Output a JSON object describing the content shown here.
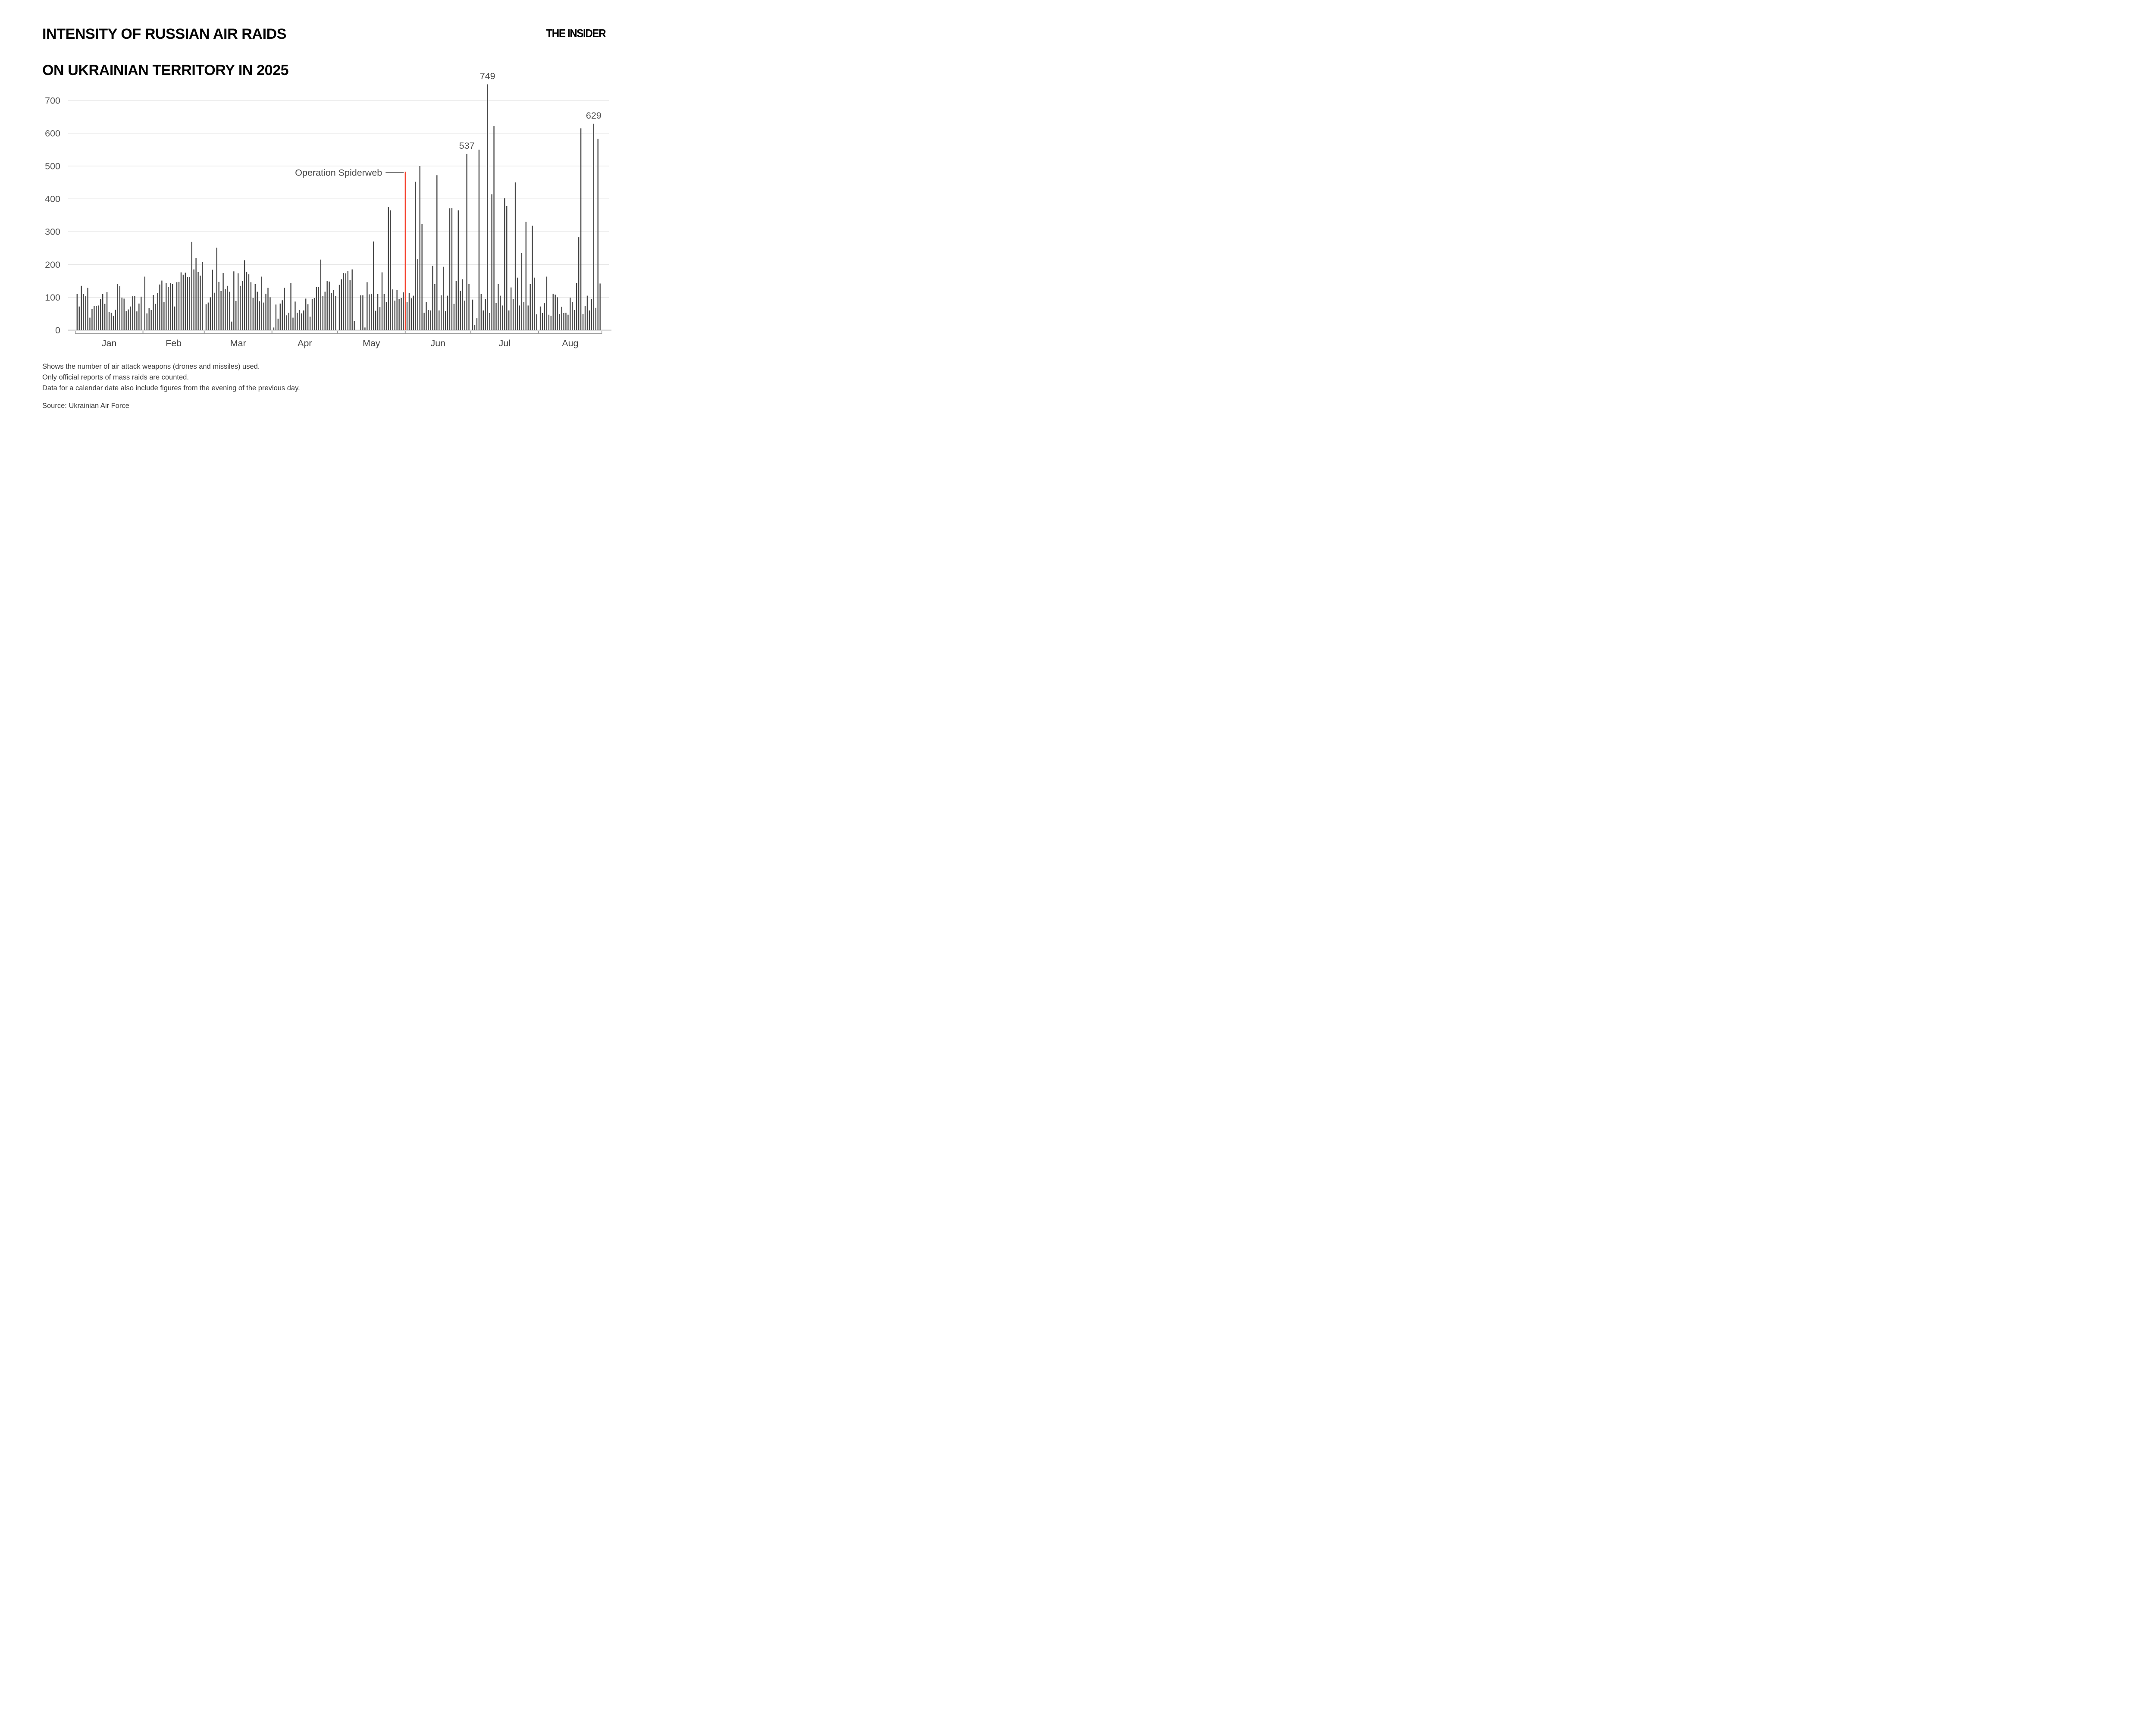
{
  "header": {
    "title_line1": "INTENSITY OF RUSSIAN AIR RAIDS",
    "title_line2": "ON UKRAINIAN TERRITORY IN 2025",
    "logo": "THE INSIDER"
  },
  "footnotes": {
    "line1": "Shows the number of air attack weapons (drones and missiles) used.",
    "line2": "Only official reports of mass raids are counted.",
    "line3": "Data for a calendar date also include figures from the evening of the previous day.",
    "source": "Source: Ukrainian Air Force"
  },
  "chart_data": {
    "type": "bar",
    "title": "Intensity of Russian air raids on Ukrainian territory in 2025, daily number of air attack weapons",
    "xlabel": "",
    "ylabel": "",
    "yticks": [
      0,
      100,
      200,
      300,
      400,
      500,
      600,
      700
    ],
    "ylim": [
      0,
      780
    ],
    "grid": true,
    "legend": "none",
    "bar_color": "#474747",
    "grid_color": "#e2e2e2",
    "axis_color": "#8c8c8c",
    "bracket_color": "#9a9a9a",
    "red_line_color": "#f5402c",
    "label_color": "#4d4d4d",
    "annotation": {
      "text": "Operation Spiderweb",
      "position": "vertical red line between May 31 and Jun 1"
    },
    "peak_labels": [
      {
        "month": "Jun",
        "day_index": 28,
        "text": "537"
      },
      {
        "month": "Jul",
        "day_index": 7,
        "text": "749"
      },
      {
        "month": "Aug",
        "day_index": 25,
        "text": "629"
      }
    ],
    "months": [
      {
        "label": "Jan",
        "values": [
          110,
          72,
          135,
          110,
          103,
          129,
          38,
          64,
          73,
          73,
          75,
          94,
          110,
          80,
          116,
          55,
          53,
          44,
          62,
          141,
          134,
          99,
          96,
          58,
          63,
          72,
          103,
          104,
          57,
          81,
          102
        ]
      },
      {
        "label": "Feb",
        "values": [
          163,
          51,
          67,
          61,
          107,
          80,
          113,
          139,
          151,
          85,
          144,
          131,
          143,
          140,
          72,
          146,
          147,
          176,
          169,
          175,
          162,
          162,
          269,
          185,
          220,
          177,
          166,
          207
        ]
      },
      {
        "label": "Mar",
        "values": [
          79,
          84,
          100,
          184,
          114,
          251,
          147,
          119,
          174,
          125,
          135,
          117,
          26,
          179,
          89,
          173,
          135,
          150,
          213,
          178,
          170,
          146,
          98,
          140,
          117,
          88,
          163,
          84,
          111,
          129,
          100
        ]
      },
      {
        "label": "Apr",
        "values": [
          8,
          78,
          35,
          81,
          91,
          129,
          45,
          53,
          144,
          38,
          87,
          53,
          61,
          51,
          60,
          96,
          79,
          41,
          94,
          98,
          131,
          131,
          215,
          104,
          117,
          149,
          148,
          113,
          122,
          104
        ]
      },
      {
        "label": "May",
        "values": [
          138,
          155,
          174,
          173,
          180,
          152,
          185,
          28,
          0,
          0,
          106,
          106,
          8,
          146,
          109,
          111,
          270,
          59,
          110,
          70,
          176,
          110,
          85,
          375,
          365,
          124,
          90,
          122,
          95,
          98,
          115
        ]
      },
      {
        "label": "Jun",
        "values": [
          85,
          113,
          97,
          105,
          452,
          216,
          500,
          323,
          53,
          86,
          61,
          60,
          196,
          140,
          472,
          60,
          106,
          193,
          58,
          105,
          371,
          372,
          80,
          150,
          365,
          120,
          155,
          90,
          537,
          140
        ]
      },
      {
        "label": "Jul",
        "values": [
          93,
          15,
          36,
          550,
          110,
          60,
          95,
          749,
          52,
          414,
          622,
          83,
          140,
          105,
          75,
          402,
          378,
          60,
          130,
          95,
          450,
          160,
          75,
          235,
          85,
          330,
          75,
          140,
          318,
          160,
          48
        ]
      },
      {
        "label": "Aug",
        "values": [
          72,
          52,
          82,
          163,
          47,
          44,
          111,
          108,
          100,
          49,
          71,
          52,
          53,
          47,
          99,
          86,
          61,
          144,
          283,
          615,
          49,
          74,
          105,
          60,
          95,
          629,
          68,
          583,
          142
        ]
      }
    ]
  }
}
